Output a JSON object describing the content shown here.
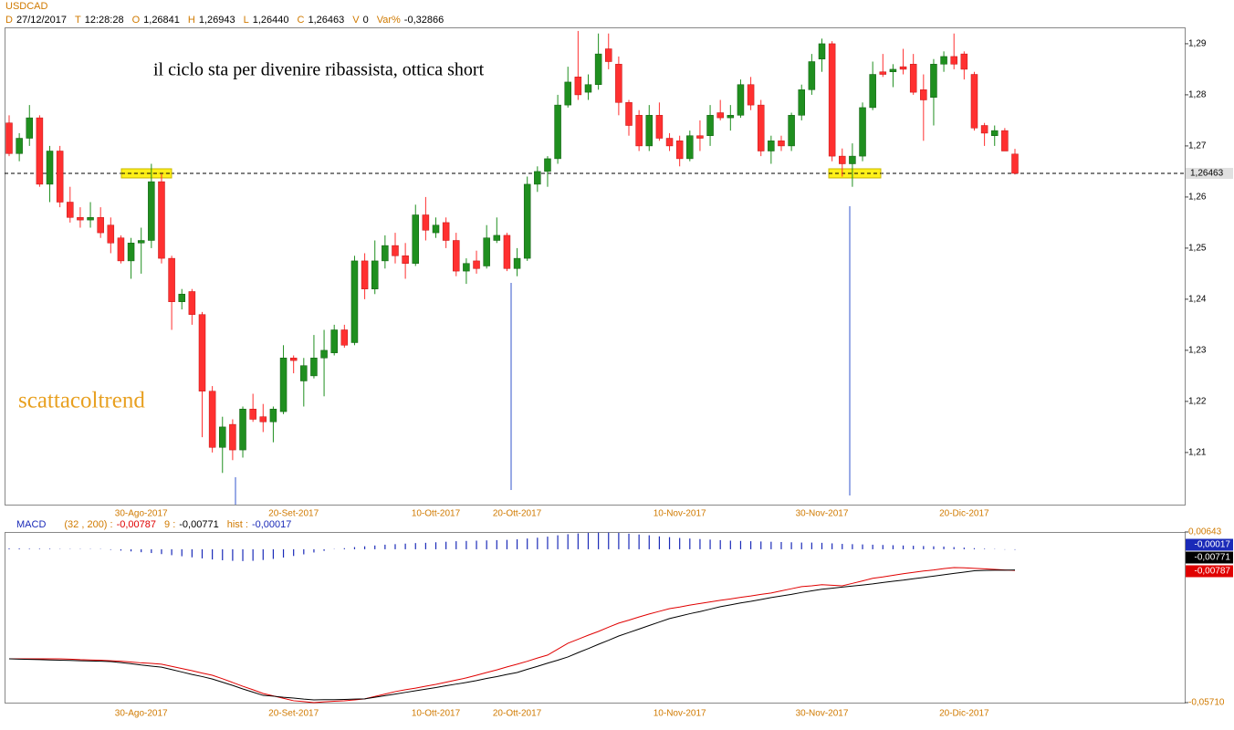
{
  "chart_data": [
    {
      "type": "candlestick",
      "title": "USDCAD",
      "info": [
        {
          "key": "D",
          "value": "27/12/2017"
        },
        {
          "key": "T",
          "value": "12:28:28"
        },
        {
          "key": "O",
          "value": "1,26841"
        },
        {
          "key": "H",
          "value": "1,26943"
        },
        {
          "key": "L",
          "value": "1,26440"
        },
        {
          "key": "C",
          "value": "1,26463"
        },
        {
          "key": "V",
          "value": "0"
        },
        {
          "key": "Var%",
          "value": "-0,32866"
        }
      ],
      "annotations": [
        "il ciclo sta per divenire ribassista, ottica short",
        "scattacoltrend"
      ],
      "categories": [
        null,
        null,
        null,
        null,
        null,
        null,
        null,
        null,
        null,
        null,
        null,
        null,
        null,
        "30-Ago-2017",
        null,
        null,
        null,
        null,
        null,
        null,
        null,
        null,
        null,
        null,
        null,
        null,
        null,
        null,
        "20-Set-2017",
        null,
        null,
        null,
        null,
        null,
        null,
        null,
        null,
        null,
        null,
        null,
        null,
        null,
        "10-Ott-2017",
        null,
        null,
        null,
        null,
        null,
        null,
        null,
        "20-Ott-2017",
        null,
        null,
        null,
        null,
        null,
        null,
        null,
        null,
        null,
        null,
        null,
        null,
        null,
        null,
        null,
        "10-Nov-2017",
        null,
        null,
        null,
        null,
        null,
        null,
        null,
        null,
        null,
        null,
        null,
        null,
        null,
        "30-Nov-2017",
        null,
        null,
        null,
        null,
        null,
        null,
        null,
        null,
        null,
        null,
        null,
        null,
        null,
        "20-Dic-2017",
        null,
        null,
        null,
        null,
        null
      ],
      "open": [
        1.2745,
        1.2685,
        1.2715,
        1.2755,
        1.2625,
        1.269,
        1.259,
        1.256,
        1.2555,
        1.256,
        1.2545,
        1.252,
        1.2475,
        1.251,
        1.2515,
        1.263,
        1.248,
        1.2395,
        1.2415,
        1.237,
        1.222,
        1.211,
        1.2155,
        1.2105,
        1.2185,
        1.217,
        1.216,
        1.218,
        1.2285,
        1.224,
        1.225,
        1.2285,
        1.2295,
        1.234,
        1.2315,
        1.2475,
        1.242,
        1.2475,
        1.2505,
        1.2485,
        1.247,
        1.2565,
        1.253,
        1.255,
        1.2515,
        1.2455,
        1.2475,
        1.2465,
        1.2515,
        1.2525,
        1.246,
        1.248,
        1.2625,
        1.265,
        1.2675,
        1.278,
        1.2835,
        1.2805,
        1.282,
        1.289,
        1.286,
        1.2785,
        1.276,
        1.27,
        1.276,
        1.2715,
        1.271,
        1.2675,
        1.272,
        1.272,
        1.2765,
        1.2755,
        1.276,
        1.282,
        1.278,
        1.269,
        1.271,
        1.27,
        1.276,
        1.281,
        1.287,
        1.29,
        1.268,
        1.2665,
        1.268,
        1.2775,
        1.2845,
        1.2845,
        1.2855,
        1.286,
        1.281,
        1.2795,
        1.286,
        1.2875,
        1.288,
        1.284,
        1.274,
        1.272,
        1.273,
        1.26841
      ],
      "high": [
        1.276,
        1.2725,
        1.278,
        1.276,
        1.27,
        1.27,
        1.262,
        1.258,
        1.259,
        1.258,
        1.256,
        1.2525,
        1.252,
        1.254,
        1.2665,
        1.2645,
        1.2485,
        1.242,
        1.242,
        1.2375,
        1.223,
        1.217,
        1.2165,
        1.219,
        1.2215,
        1.2195,
        1.219,
        1.231,
        1.229,
        1.2285,
        1.233,
        1.234,
        1.235,
        1.235,
        1.2485,
        1.249,
        1.2515,
        1.2525,
        1.253,
        1.251,
        1.2585,
        1.26,
        1.256,
        1.256,
        1.253,
        1.248,
        1.2495,
        1.2545,
        1.256,
        1.253,
        1.25,
        1.264,
        1.266,
        1.268,
        1.28,
        1.2855,
        1.2925,
        1.284,
        1.292,
        1.292,
        1.2875,
        1.279,
        1.277,
        1.278,
        1.2785,
        1.2725,
        1.272,
        1.273,
        1.275,
        1.278,
        1.279,
        1.278,
        1.283,
        1.2835,
        1.279,
        1.272,
        1.272,
        1.2765,
        1.282,
        1.288,
        1.291,
        1.2905,
        1.2695,
        1.2705,
        1.2785,
        1.2865,
        1.288,
        1.286,
        1.289,
        1.288,
        1.284,
        1.287,
        1.2885,
        1.292,
        1.2885,
        1.2845,
        1.2745,
        1.274,
        1.2735,
        1.26943
      ],
      "low": [
        1.268,
        1.267,
        1.27,
        1.262,
        1.259,
        1.258,
        1.255,
        1.254,
        1.254,
        1.252,
        1.249,
        1.247,
        1.244,
        1.245,
        1.25,
        1.247,
        1.234,
        1.238,
        1.235,
        1.213,
        1.21,
        1.206,
        1.2085,
        1.209,
        1.216,
        1.214,
        1.212,
        1.2175,
        1.2255,
        1.219,
        1.2245,
        1.221,
        1.229,
        1.2305,
        1.231,
        1.24,
        1.241,
        1.246,
        1.247,
        1.244,
        1.2465,
        1.2515,
        1.252,
        1.25,
        1.2445,
        1.243,
        1.245,
        1.246,
        1.251,
        1.2455,
        1.2445,
        1.2475,
        1.261,
        1.262,
        1.2665,
        1.2775,
        1.279,
        1.279,
        1.281,
        1.285,
        1.276,
        1.272,
        1.269,
        1.269,
        1.271,
        1.269,
        1.266,
        1.267,
        1.269,
        1.27,
        1.275,
        1.273,
        1.2755,
        1.277,
        1.268,
        1.2665,
        1.269,
        1.269,
        1.275,
        1.28,
        1.2845,
        1.267,
        1.264,
        1.262,
        1.267,
        1.277,
        1.2835,
        1.2815,
        1.284,
        1.28,
        1.271,
        1.274,
        1.2845,
        1.285,
        1.283,
        1.273,
        1.27,
        1.27,
        1.269,
        1.2644
      ],
      "close": [
        1.2685,
        1.2715,
        1.2755,
        1.2625,
        1.269,
        1.259,
        1.256,
        1.2555,
        1.256,
        1.253,
        1.251,
        1.2475,
        1.251,
        1.2515,
        1.263,
        1.248,
        1.2395,
        1.241,
        1.237,
        1.222,
        1.211,
        1.215,
        1.2105,
        1.2185,
        1.2165,
        1.216,
        1.2185,
        1.2285,
        1.228,
        1.227,
        1.2285,
        1.23,
        1.234,
        1.231,
        1.2475,
        1.242,
        1.2475,
        1.2505,
        1.2485,
        1.247,
        1.2565,
        1.2535,
        1.2545,
        1.2515,
        1.2455,
        1.247,
        1.246,
        1.252,
        1.2525,
        1.246,
        1.248,
        1.2625,
        1.265,
        1.2675,
        1.278,
        1.2825,
        1.28,
        1.282,
        1.288,
        1.2865,
        1.2785,
        1.274,
        1.27,
        1.276,
        1.2715,
        1.27,
        1.2675,
        1.272,
        1.2715,
        1.276,
        1.2755,
        1.276,
        1.282,
        1.278,
        1.269,
        1.271,
        1.27,
        1.276,
        1.281,
        1.2865,
        1.29,
        1.268,
        1.2665,
        1.268,
        1.2775,
        1.284,
        1.284,
        1.285,
        1.285,
        1.2805,
        1.279,
        1.286,
        1.2875,
        1.286,
        1.285,
        1.2735,
        1.2725,
        1.273,
        1.269,
        1.26463
      ],
      "up_color": "#1f8f1f",
      "down_color": "#ff3030",
      "ylim": [
        1.1998,
        1.2932
      ],
      "yticks": [
        {
          "value": 1.21,
          "label": "1,21"
        },
        {
          "value": 1.22,
          "label": "1,22"
        },
        {
          "value": 1.23,
          "label": "1,23"
        },
        {
          "value": 1.24,
          "label": "1,24"
        },
        {
          "value": 1.25,
          "label": "1,25"
        },
        {
          "value": 1.26,
          "label": "1,26"
        },
        {
          "value": 1.27,
          "label": "1,27"
        },
        {
          "value": 1.28,
          "label": "1,28"
        },
        {
          "value": 1.29,
          "label": "1,29"
        }
      ],
      "hline": {
        "value": 1.26463,
        "label": "1,26463"
      }
    },
    {
      "type": "line",
      "title": "MACD",
      "ylim": [
        -0.0571,
        0.00643
      ],
      "yticks": [
        {
          "value": 0.00643,
          "label": "0,00643"
        },
        {
          "value": -0.0571,
          "label": "-0,05710"
        }
      ],
      "series": [
        {
          "name": "(32 , 200) :",
          "color": "#e00000",
          "kind": "line",
          "last_label": "-0,00787",
          "values": [
            -0.0408,
            -0.0408,
            -0.0408,
            -0.0408,
            -0.0408,
            -0.0408,
            -0.0409,
            -0.0411,
            -0.0412,
            -0.0413,
            -0.0415,
            -0.0417,
            -0.042,
            -0.0423,
            -0.0425,
            -0.0428,
            -0.0436,
            -0.0444,
            -0.0452,
            -0.0461,
            -0.0469,
            -0.0482,
            -0.0496,
            -0.051,
            -0.0523,
            -0.0537,
            -0.0546,
            -0.0555,
            -0.0564,
            -0.0567,
            -0.0571,
            -0.0568,
            -0.0566,
            -0.0564,
            -0.0561,
            -0.0557,
            -0.0548,
            -0.0539,
            -0.053,
            -0.0523,
            -0.0517,
            -0.051,
            -0.0503,
            -0.0495,
            -0.0487,
            -0.0479,
            -0.0469,
            -0.0459,
            -0.0449,
            -0.0438,
            -0.0428,
            -0.0417,
            -0.0405,
            -0.0394,
            -0.0372,
            -0.035,
            -0.0335,
            -0.032,
            -0.0306,
            -0.029,
            -0.0275,
            -0.0264,
            -0.0252,
            -0.0241,
            -0.0231,
            -0.0221,
            -0.0215,
            -0.0208,
            -0.0202,
            -0.0196,
            -0.019,
            -0.0185,
            -0.0179,
            -0.0174,
            -0.0168,
            -0.0163,
            -0.0155,
            -0.0147,
            -0.0139,
            -0.0136,
            -0.0132,
            -0.0134,
            -0.0136,
            -0.0127,
            -0.0118,
            -0.0108,
            -0.0103,
            -0.0097,
            -0.0091,
            -0.0086,
            -0.0081,
            -0.0077,
            -0.0072,
            -0.0068,
            -0.0069,
            -0.0071,
            -0.0073,
            -0.0075,
            -0.0077,
            -0.00787
          ]
        },
        {
          "name": "9 :",
          "color": "#000000",
          "kind": "line",
          "last_label": "-0,00771",
          "values": [
            -0.0408,
            -0.0409,
            -0.041,
            -0.0411,
            -0.0412,
            -0.0413,
            -0.0414,
            -0.0415,
            -0.0416,
            -0.0417,
            -0.0418,
            -0.0422,
            -0.0426,
            -0.0431,
            -0.0435,
            -0.0439,
            -0.0448,
            -0.0457,
            -0.0466,
            -0.0474,
            -0.0483,
            -0.0495,
            -0.0507,
            -0.052,
            -0.0532,
            -0.0544,
            -0.0547,
            -0.0551,
            -0.0554,
            -0.0558,
            -0.0561,
            -0.056,
            -0.056,
            -0.0559,
            -0.0558,
            -0.0557,
            -0.0551,
            -0.0545,
            -0.0539,
            -0.0533,
            -0.0527,
            -0.0521,
            -0.0515,
            -0.0508,
            -0.0502,
            -0.0496,
            -0.0489,
            -0.0481,
            -0.0474,
            -0.0466,
            -0.0459,
            -0.0447,
            -0.0436,
            -0.0424,
            -0.0413,
            -0.0401,
            -0.0385,
            -0.037,
            -0.0354,
            -0.0339,
            -0.0323,
            -0.031,
            -0.0297,
            -0.0284,
            -0.0271,
            -0.0258,
            -0.0249,
            -0.024,
            -0.0232,
            -0.0223,
            -0.0214,
            -0.0207,
            -0.02,
            -0.0194,
            -0.0187,
            -0.018,
            -0.0174,
            -0.0168,
            -0.0161,
            -0.0155,
            -0.0149,
            -0.0145,
            -0.0141,
            -0.0137,
            -0.0133,
            -0.0129,
            -0.0124,
            -0.0119,
            -0.0115,
            -0.011,
            -0.0105,
            -0.01,
            -0.0095,
            -0.009,
            -0.0085,
            -0.008,
            -0.0079,
            -0.0078,
            -0.0078,
            -0.00771
          ]
        },
        {
          "name": "hist :",
          "color": "#1a2ab8",
          "kind": "bar",
          "last_label": "-0,00017",
          "values": [
            0.0003,
            0.0003,
            0.0002,
            0.0002,
            0.0002,
            0.0001,
            0.0001,
            0.0001,
            0.0001,
            0.0001,
            -0.0002,
            -0.0005,
            -0.0008,
            -0.0011,
            -0.0014,
            -0.0018,
            -0.0022,
            -0.0026,
            -0.003,
            -0.0034,
            -0.0038,
            -0.0041,
            -0.0043,
            -0.0044,
            -0.0043,
            -0.004,
            -0.0036,
            -0.0031,
            -0.0025,
            -0.0019,
            -0.0012,
            -0.0006,
            0.0001,
            0.0004,
            0.0008,
            0.0011,
            0.0014,
            0.0017,
            0.0019,
            0.0021,
            0.0023,
            0.0024,
            0.0026,
            0.0028,
            0.003,
            0.0031,
            0.0032,
            0.0033,
            0.0034,
            0.0035,
            0.0037,
            0.004,
            0.0043,
            0.0047,
            0.0052,
            0.0056,
            0.0059,
            0.0061,
            0.0062,
            0.0062,
            0.0061,
            0.0058,
            0.0055,
            0.0052,
            0.0048,
            0.0045,
            0.0042,
            0.004,
            0.0038,
            0.0036,
            0.0034,
            0.0032,
            0.0031,
            0.003,
            0.0029,
            0.0028,
            0.0027,
            0.0026,
            0.0025,
            0.0025,
            0.0024,
            0.0022,
            0.002,
            0.0019,
            0.0018,
            0.0017,
            0.0016,
            0.0015,
            0.0014,
            0.0013,
            0.0012,
            0.0011,
            0.001,
            0.0008,
            0.0006,
            0.0004,
            0.0002,
            0.0001,
            -0.0001,
            -0.00017
          ]
        }
      ]
    }
  ]
}
